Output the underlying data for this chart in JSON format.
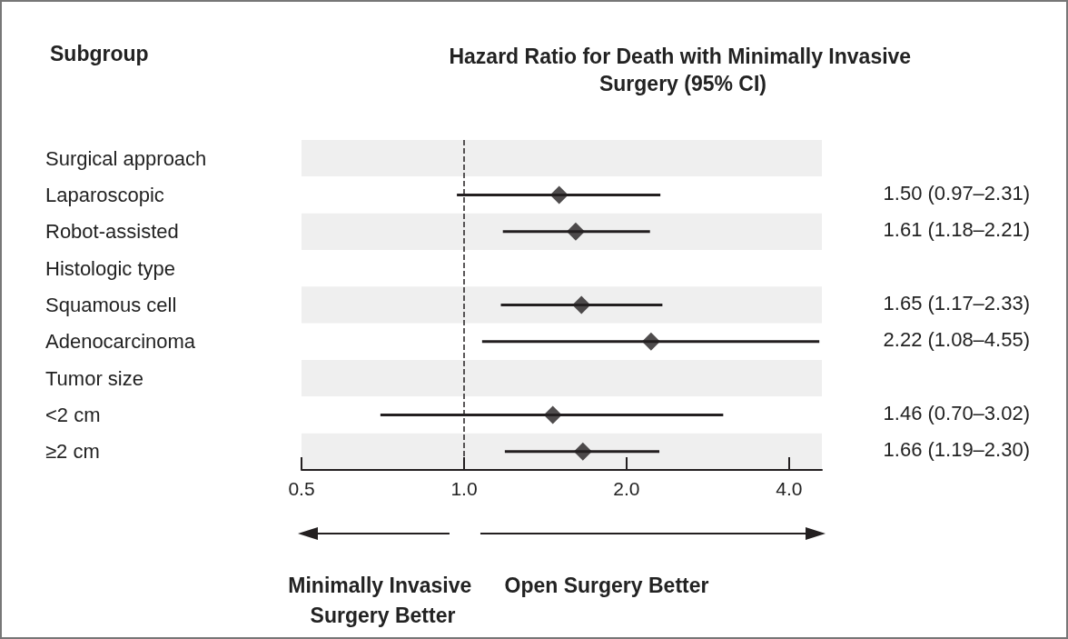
{
  "chart_data": {
    "type": "scatter",
    "orientation": "horizontal",
    "title": "Hazard Ratio for Death with Minimally Invasive Surgery (95% CI)",
    "ylabel": "Subgroup",
    "categories": [
      "Surgical approach",
      "Laparoscopic",
      "Robot-assisted",
      "Histologic type",
      "Squamous cell",
      "Adenocarcinoma",
      "Tumor size",
      "<2 cm",
      "≥2 cm"
    ],
    "values": [
      null,
      1.5,
      1.61,
      null,
      1.65,
      2.22,
      null,
      1.46,
      1.66
    ],
    "errors": [
      null,
      [
        0.97,
        2.31
      ],
      [
        1.18,
        2.21
      ],
      null,
      [
        1.17,
        2.33
      ],
      [
        1.08,
        4.55
      ],
      null,
      [
        0.7,
        3.02
      ],
      [
        1.19,
        2.3
      ]
    ],
    "value_labels": [
      null,
      "1.50 (0.97–2.31)",
      "1.61 (1.18–2.21)",
      null,
      "1.65 (1.17–2.33)",
      "2.22 (1.08–4.55)",
      null,
      "1.46 (0.70–3.02)",
      "1.66 (1.19–2.30)"
    ],
    "color": "#231f20",
    "marker": "diamond",
    "log": "x",
    "grid": false,
    "xlim": [
      0.5,
      4.6
    ],
    "xticks": [
      {
        "value": 0.5,
        "label": "0.5"
      },
      {
        "value": 1,
        "label": "1.0"
      },
      {
        "value": 2,
        "label": "2.0"
      },
      {
        "value": 4,
        "label": "4.0"
      }
    ],
    "ref_lines": [
      {
        "axis": "x",
        "value": 1,
        "line_style": "dashed"
      }
    ],
    "annotations": [
      "Minimally Invasive Surgery Better",
      "Open Surgery Better"
    ]
  }
}
